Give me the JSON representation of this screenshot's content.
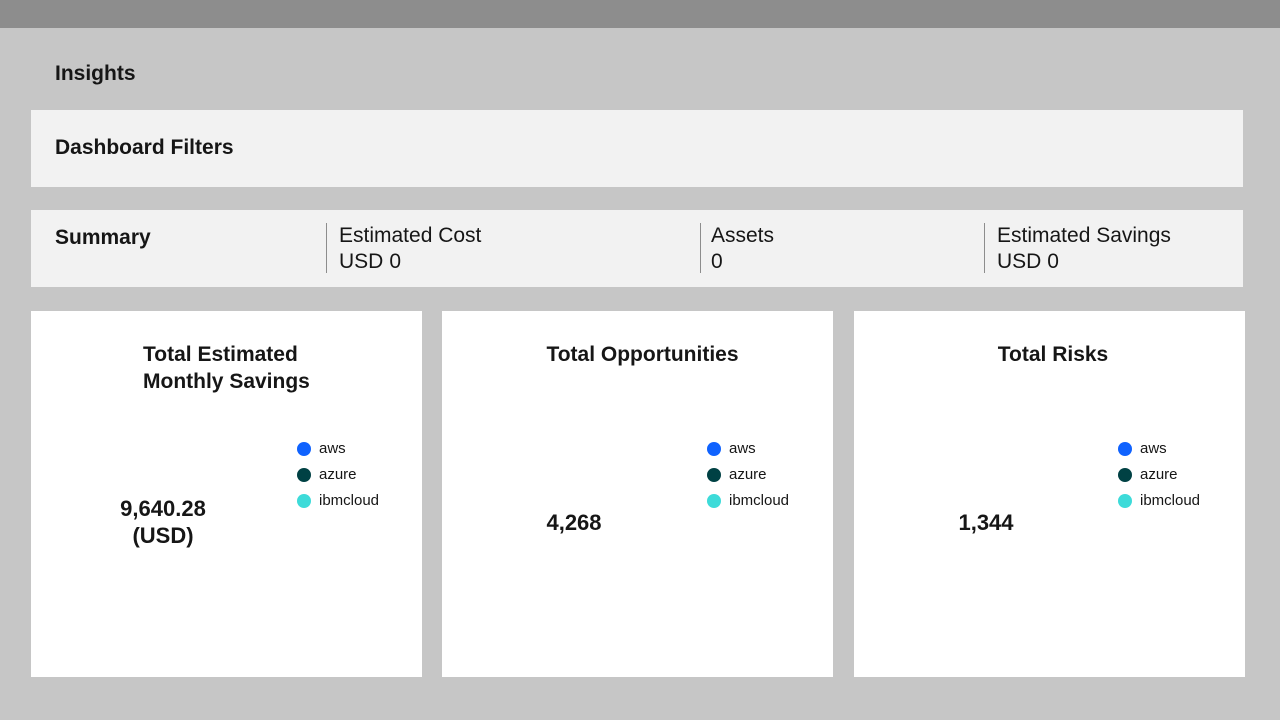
{
  "page": {
    "title": "Insights"
  },
  "filters": {
    "title": "Dashboard Filters"
  },
  "summary": {
    "title": "Summary",
    "estimated_cost": {
      "label": "Estimated Cost",
      "currency": "USD",
      "value": "0"
    },
    "assets": {
      "label": "Assets",
      "value": "0"
    },
    "estimated_savings": {
      "label": "Estimated Savings",
      "currency": "USD",
      "value": "0"
    }
  },
  "legend": {
    "items": [
      {
        "label": "aws",
        "color": "#0f62fe"
      },
      {
        "label": "azure",
        "color": "#004144"
      },
      {
        "label": "ibmcloud",
        "color": "#3ddbd9"
      }
    ]
  },
  "cards": [
    {
      "title_line1": "Total Estimated",
      "title_line2": "Monthly Savings",
      "value": "9,640.28",
      "unit": "(USD)"
    },
    {
      "title": "Total Opportunities",
      "value": "4,268"
    },
    {
      "title": "Total Risks",
      "value": "1,344"
    }
  ],
  "colors": {
    "topbar": "#8d8d8d",
    "page_background": "#c6c6c6",
    "panel_background": "#f2f2f2",
    "card_background": "#ffffff"
  }
}
